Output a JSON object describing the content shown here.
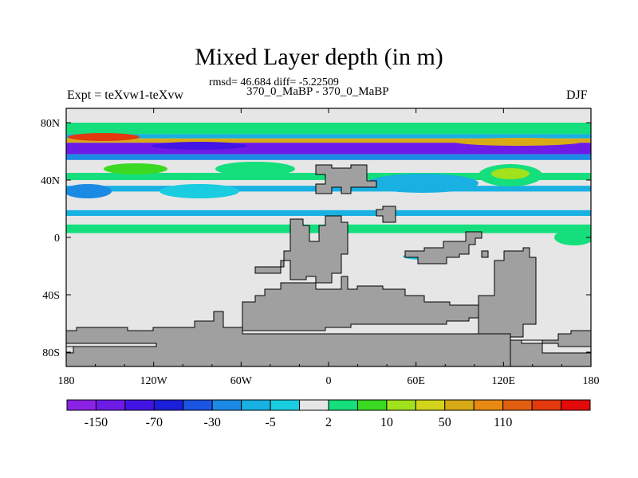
{
  "header": {
    "title": "Mixed Layer depth (in m)",
    "stats": "rmsd= 46.684 diff= -5.22509",
    "subtitle": "370_0_MaBP - 370_0_MaBP",
    "experiment": "Expt = teXvw1-teXvw",
    "season": "DJF"
  },
  "chart_data": {
    "type": "heatmap",
    "title": "Mixed Layer depth (in m)",
    "subtitle": "370_0_MaBP - 370_0_MaBP",
    "x_axis": {
      "range": [
        -180,
        180
      ],
      "ticks": [
        -180,
        -120,
        -60,
        0,
        60,
        120,
        180
      ],
      "tick_labels": [
        "180",
        "120W",
        "60W",
        "0",
        "60E",
        "120E",
        "180"
      ]
    },
    "y_axis": {
      "range": [
        -90,
        90
      ],
      "ticks": [
        80,
        40,
        0,
        -40,
        -80
      ],
      "tick_labels": [
        "80N",
        "40N",
        "0",
        "40S",
        "80S"
      ]
    },
    "land_color": "#a0a0a0",
    "colorbar": {
      "orientation": "horizontal",
      "colors": [
        "#8b22e5",
        "#6d1be6",
        "#4215e3",
        "#1b1fd9",
        "#1a55e3",
        "#1b8ae4",
        "#19b0e2",
        "#1acce0",
        "#e6e6e6",
        "#14df7c",
        "#3cd922",
        "#a1e21c",
        "#d3d41b",
        "#d8aa17",
        "#e88a12",
        "#e25f10",
        "#e23a0d",
        "#e30a0a"
      ],
      "labels": [
        "-150",
        "-70",
        "-30",
        "-5",
        "2",
        "10",
        "50",
        "110"
      ],
      "label_boundaries": [
        1,
        3,
        5,
        7,
        9,
        11,
        13,
        15
      ]
    },
    "field_bands": [
      {
        "lat_from": 80,
        "lat_to": 72,
        "color": "#14df7c"
      },
      {
        "lat_from": 72,
        "lat_to": 69,
        "color": "#19b0e2"
      },
      {
        "lat_from": 69,
        "lat_to": 66,
        "color": "#d8aa17"
      },
      {
        "lat_from": 66,
        "lat_to": 58,
        "color": "#6d1be6"
      },
      {
        "lat_from": 58,
        "lat_to": 54,
        "color": "#1b8ae4"
      },
      {
        "lat_from": 45,
        "lat_to": 40,
        "color": "#14df7c"
      },
      {
        "lat_from": 36,
        "lat_to": 32,
        "color": "#19b0e2"
      },
      {
        "lat_from": 19,
        "lat_to": 15,
        "color": "#19b0e2"
      },
      {
        "lat_from": 9,
        "lat_to": 3,
        "color": "#14df7c"
      }
    ]
  }
}
